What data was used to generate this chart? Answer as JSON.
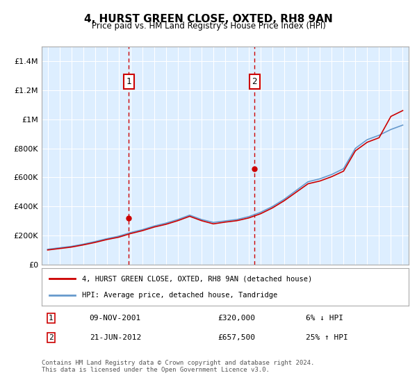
{
  "title": "4, HURST GREEN CLOSE, OXTED, RH8 9AN",
  "subtitle": "Price paid vs. HM Land Registry's House Price Index (HPI)",
  "legend_line1": "4, HURST GREEN CLOSE, OXTED, RH8 9AN (detached house)",
  "legend_line2": "HPI: Average price, detached house, Tandridge",
  "annotation1_label": "1",
  "annotation1_date": "2001-11-09",
  "annotation1_text": "09-NOV-2001",
  "annotation1_price": "£320,000",
  "annotation1_hpi": "6% ↓ HPI",
  "annotation2_label": "2",
  "annotation2_date": "2012-06-21",
  "annotation2_text": "21-JUN-2012",
  "annotation2_price": "£657,500",
  "annotation2_hpi": "25% ↑ HPI",
  "footer": "Contains HM Land Registry data © Crown copyright and database right 2024.\nThis data is licensed under the Open Government Licence v3.0.",
  "red_line_color": "#cc0000",
  "blue_line_color": "#6699cc",
  "background_plot": "#ddeeff",
  "background_fig": "#ffffff",
  "grid_color": "#ffffff",
  "annotation_box_color": "#cc0000",
  "dashed_line_color": "#cc0000",
  "ylim": [
    0,
    1500000
  ],
  "yticks": [
    0,
    200000,
    400000,
    600000,
    800000,
    1000000,
    1200000,
    1400000
  ],
  "ytick_labels": [
    "£0",
    "£200K",
    "£400K",
    "£600K",
    "£800K",
    "£1M",
    "£1.2M",
    "£1.4M"
  ],
  "hpi_years": [
    1995,
    1996,
    1997,
    1998,
    1999,
    2000,
    2001,
    2002,
    2003,
    2004,
    2005,
    2006,
    2007,
    2008,
    2009,
    2010,
    2011,
    2012,
    2013,
    2014,
    2015,
    2016,
    2017,
    2018,
    2019,
    2020,
    2021,
    2022,
    2023,
    2024,
    2025
  ],
  "hpi_values": [
    105000,
    115000,
    125000,
    140000,
    158000,
    178000,
    195000,
    220000,
    240000,
    265000,
    285000,
    310000,
    340000,
    310000,
    290000,
    300000,
    310000,
    330000,
    360000,
    400000,
    450000,
    510000,
    570000,
    590000,
    620000,
    660000,
    800000,
    860000,
    890000,
    930000,
    960000
  ],
  "red_years": [
    1995,
    1996,
    1997,
    1998,
    1999,
    2000,
    2001,
    2002,
    2003,
    2004,
    2005,
    2006,
    2007,
    2008,
    2009,
    2010,
    2011,
    2012,
    2013,
    2014,
    2015,
    2016,
    2017,
    2018,
    2019,
    2020,
    2021,
    2022,
    2023,
    2024,
    2025
  ],
  "red_values": [
    100000,
    110000,
    120000,
    135000,
    152000,
    172000,
    188000,
    213000,
    233000,
    258000,
    277000,
    302000,
    332000,
    302000,
    280000,
    292000,
    302000,
    321000,
    350000,
    390000,
    440000,
    498000,
    556000,
    575000,
    605000,
    643000,
    783000,
    842000,
    873000,
    1020000,
    1060000
  ],
  "sale1_year": 2001.86,
  "sale1_value": 320000,
  "sale2_year": 2012.47,
  "sale2_value": 657500
}
